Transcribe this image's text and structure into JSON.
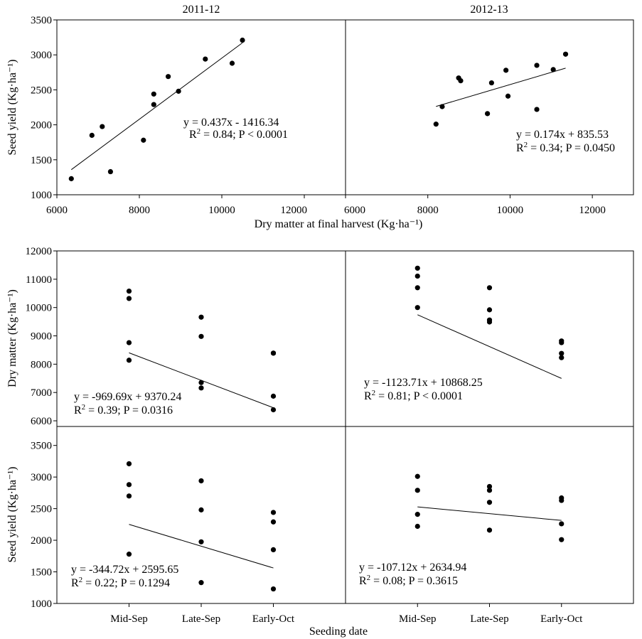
{
  "chart_data": [
    {
      "id": "p1",
      "type": "scatter",
      "title": "2011-12",
      "xlabel": "",
      "ylabel": "Seed yield (Kg·ha⁻¹)",
      "xlim": [
        6000,
        13000
      ],
      "ylim": [
        1000,
        3500
      ],
      "xticks": [
        6000,
        8000,
        10000,
        12000
      ],
      "yticks": [
        1000,
        1500,
        2000,
        2500,
        3000,
        3500
      ],
      "points": [
        [
          6350,
          1230
        ],
        [
          6850,
          1850
        ],
        [
          7100,
          1975
        ],
        [
          7300,
          1330
        ],
        [
          8100,
          1780
        ],
        [
          8350,
          2440
        ],
        [
          8350,
          2290
        ],
        [
          8700,
          2690
        ],
        [
          8950,
          2480
        ],
        [
          9600,
          2940
        ],
        [
          10250,
          2880
        ],
        [
          10500,
          3210
        ]
      ],
      "fit": {
        "x0": 6350,
        "x1": 10500,
        "slope": 0.437,
        "intercept": -1416.34
      },
      "equation": "y = 0.437x - 1416.34",
      "stats": [
        "R",
        "2",
        " = 0.84; P < 0.0001"
      ]
    },
    {
      "id": "p2",
      "type": "scatter",
      "title": "2012-13",
      "xlabel": "",
      "ylabel": "",
      "xlim": [
        6000,
        13000
      ],
      "ylim": [
        1000,
        3500
      ],
      "xticks": [
        6000,
        8000,
        10000,
        12000
      ],
      "yticks": [],
      "points": [
        [
          8200,
          2010
        ],
        [
          8350,
          2260
        ],
        [
          8750,
          2670
        ],
        [
          8800,
          2630
        ],
        [
          9450,
          2160
        ],
        [
          9550,
          2600
        ],
        [
          9900,
          2780
        ],
        [
          9950,
          2410
        ],
        [
          10650,
          2850
        ],
        [
          10650,
          2220
        ],
        [
          11050,
          2790
        ],
        [
          11350,
          3010
        ]
      ],
      "fit": {
        "x0": 8200,
        "x1": 11350,
        "slope": 0.174,
        "intercept": 835.53
      },
      "equation": "y = 0.174x + 835.53",
      "stats": [
        "R",
        "2",
        " = 0.34; P = 0.0450"
      ]
    },
    {
      "id": "p3",
      "type": "scatter",
      "title": "",
      "xlabel": "",
      "ylabel": "Dry matter (Kg·ha⁻¹)",
      "xlim": [
        0,
        4
      ],
      "ylim": [
        5800,
        12000
      ],
      "xticks": [],
      "yticks": [
        6000,
        7000,
        8000,
        9000,
        10000,
        11000,
        12000
      ],
      "points": [
        [
          1,
          10580
        ],
        [
          1,
          10320
        ],
        [
          1,
          8760
        ],
        [
          1,
          8140
        ],
        [
          2,
          9660
        ],
        [
          2,
          8980
        ],
        [
          2,
          7350
        ],
        [
          2,
          7160
        ],
        [
          3,
          8390
        ],
        [
          3,
          8390
        ],
        [
          3,
          6870
        ],
        [
          3,
          6390
        ]
      ],
      "fit": {
        "x0": 1,
        "x1": 3,
        "slope": -969.69,
        "intercept": 9370.24,
        "x_offset": 1
      },
      "equation": "y = -969.69x + 9370.24",
      "stats": [
        "R",
        "2",
        " = 0.39; P = 0.0316"
      ]
    },
    {
      "id": "p4",
      "type": "scatter",
      "title": "",
      "xlabel": "",
      "ylabel": "",
      "xlim": [
        0,
        4
      ],
      "ylim": [
        5800,
        12000
      ],
      "xticks": [],
      "yticks": [],
      "points": [
        [
          1,
          11390
        ],
        [
          1,
          11110
        ],
        [
          1,
          10700
        ],
        [
          1,
          10000
        ],
        [
          2,
          10700
        ],
        [
          2,
          9920
        ],
        [
          2,
          9560
        ],
        [
          2,
          9490
        ],
        [
          3,
          8820
        ],
        [
          3,
          8760
        ],
        [
          3,
          8380
        ],
        [
          3,
          8230
        ]
      ],
      "fit": {
        "x0": 1,
        "x1": 3,
        "slope": -1123.71,
        "intercept": 10868.25,
        "x_offset": 1
      },
      "equation": "y = -1123.71x + 10868.25",
      "stats": [
        "R",
        "2",
        " = 0.81; P < 0.0001"
      ]
    },
    {
      "id": "p5",
      "type": "scatter",
      "title": "",
      "xlabel": "Seeding date",
      "ylabel": "Seed yield (Kg·ha⁻¹)",
      "xlim": [
        0,
        4
      ],
      "ylim": [
        1000,
        3800
      ],
      "categories": [
        "Mid-Sep",
        "Late-Sep",
        "Early-Oct"
      ],
      "xticks": [
        1,
        2,
        3
      ],
      "yticks": [
        1000,
        1500,
        2000,
        2500,
        3000,
        3500
      ],
      "points": [
        [
          1,
          3210
        ],
        [
          1,
          2880
        ],
        [
          1,
          2700
        ],
        [
          1,
          1780
        ],
        [
          2,
          2940
        ],
        [
          2,
          2480
        ],
        [
          2,
          1975
        ],
        [
          2,
          1330
        ],
        [
          3,
          2440
        ],
        [
          3,
          2290
        ],
        [
          3,
          1850
        ],
        [
          3,
          1230
        ]
      ],
      "fit": {
        "x0": 1,
        "x1": 3,
        "slope": -344.72,
        "intercept": 2595.65,
        "x_offset": 1
      },
      "equation": "y = -344.72x + 2595.65",
      "stats": [
        "R",
        "2",
        " = 0.22; P = 0.1294"
      ]
    },
    {
      "id": "p6",
      "type": "scatter",
      "title": "",
      "xlabel": "",
      "ylabel": "",
      "xlim": [
        0,
        4
      ],
      "ylim": [
        1000,
        3800
      ],
      "categories": [
        "Mid-Sep",
        "Late-Sep",
        "Early-Oct"
      ],
      "xticks": [
        1,
        2,
        3
      ],
      "yticks": [],
      "points": [
        [
          1,
          3010
        ],
        [
          1,
          2790
        ],
        [
          1,
          2410
        ],
        [
          1,
          2220
        ],
        [
          2,
          2850
        ],
        [
          2,
          2790
        ],
        [
          2,
          2600
        ],
        [
          2,
          2160
        ],
        [
          3,
          2670
        ],
        [
          3,
          2630
        ],
        [
          3,
          2260
        ],
        [
          3,
          2010
        ]
      ],
      "fit": {
        "x0": 1,
        "x1": 3,
        "slope": -107.12,
        "intercept": 2634.94,
        "x_offset": 1
      },
      "equation": "y = -107.12x + 2634.94",
      "stats": [
        "R",
        "2",
        " = 0.08; P = 0.3615"
      ]
    }
  ],
  "shared_labels": {
    "top_xlabel": "Dry matter  at final harvest  (Kg·ha⁻¹)",
    "bottom_xlabel": "Seeding date"
  }
}
